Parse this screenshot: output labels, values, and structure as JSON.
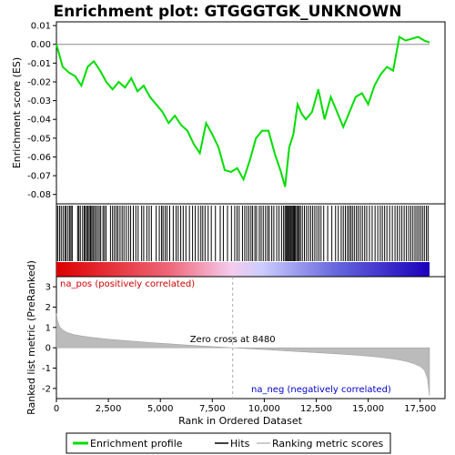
{
  "chart_data": {
    "type": "line",
    "title": "Enrichment plot: GTGGGTGK_UNKNOWN",
    "top_panel": {
      "ylabel": "Enrichment score (ES)",
      "ylim": [
        -0.085,
        0.012
      ],
      "yticks": [
        "0.01",
        "0.00",
        "-0.01",
        "-0.02",
        "-0.03",
        "-0.04",
        "-0.05",
        "-0.06",
        "-0.07",
        "-0.08"
      ],
      "ytick_values": [
        0.01,
        0.0,
        -0.01,
        -0.02,
        -0.03,
        -0.04,
        -0.05,
        -0.06,
        -0.07,
        -0.08
      ],
      "series_name": "Enrichment profile",
      "color": "#00dd00",
      "x": [
        0,
        300,
        600,
        900,
        1200,
        1500,
        1800,
        2100,
        2400,
        2700,
        3000,
        3300,
        3600,
        3900,
        4200,
        4500,
        4800,
        5100,
        5400,
        5700,
        6000,
        6300,
        6600,
        6900,
        7200,
        7500,
        7800,
        8100,
        8400,
        8700,
        9000,
        9300,
        9600,
        9900,
        10200,
        10500,
        10800,
        11000,
        11200,
        11400,
        11600,
        11800,
        12000,
        12300,
        12600,
        12900,
        13200,
        13500,
        13800,
        14100,
        14400,
        14700,
        15000,
        15300,
        15600,
        15900,
        16200,
        16500,
        16800,
        17100,
        17400,
        17700,
        17950
      ],
      "y": [
        0.0,
        -0.012,
        -0.015,
        -0.017,
        -0.022,
        -0.012,
        -0.009,
        -0.014,
        -0.02,
        -0.024,
        -0.02,
        -0.023,
        -0.018,
        -0.025,
        -0.022,
        -0.028,
        -0.032,
        -0.036,
        -0.042,
        -0.038,
        -0.043,
        -0.046,
        -0.053,
        -0.058,
        -0.042,
        -0.048,
        -0.055,
        -0.067,
        -0.068,
        -0.066,
        -0.072,
        -0.062,
        -0.05,
        -0.046,
        -0.046,
        -0.058,
        -0.068,
        -0.076,
        -0.055,
        -0.048,
        -0.032,
        -0.037,
        -0.04,
        -0.036,
        -0.024,
        -0.04,
        -0.028,
        -0.036,
        -0.044,
        -0.036,
        -0.028,
        -0.026,
        -0.032,
        -0.022,
        -0.016,
        -0.012,
        -0.014,
        0.004,
        0.002,
        0.003,
        0.004,
        0.002,
        0.001
      ]
    },
    "hits_panel": {
      "series_name": "Hits",
      "hit_positions": [
        60,
        150,
        230,
        320,
        410,
        470,
        560,
        640,
        700,
        760,
        1020,
        1080,
        1150,
        1260,
        1340,
        1390,
        1460,
        1520,
        1580,
        1640,
        1700,
        1760,
        1830,
        1900,
        1980,
        2060,
        2130,
        2240,
        2310,
        2390,
        2600,
        2700,
        2790,
        2880,
        2960,
        3060,
        3160,
        3250,
        3360,
        3470,
        3570,
        3700,
        3820,
        3930,
        4100,
        4200,
        4350,
        4460,
        4570,
        4800,
        4950,
        5060,
        5130,
        5230,
        5320,
        5450,
        5620,
        5760,
        5860,
        5980,
        6100,
        6230,
        6400,
        6550,
        6680,
        6830,
        6950,
        7040,
        7150,
        7300,
        7450,
        7650,
        7880,
        8030,
        8230,
        8420,
        8580,
        8690,
        8790,
        8950,
        9060,
        9160,
        9260,
        9360,
        9440,
        9550,
        9630,
        9760,
        9850,
        9950,
        10060,
        10160,
        10240,
        10360,
        10460,
        10600,
        10710,
        10830,
        10930,
        11000,
        11060,
        11110,
        11150,
        11200,
        11250,
        11300,
        11350,
        11400,
        11450,
        11500,
        11560,
        11620,
        11680,
        11740,
        11830,
        11930,
        12030,
        12130,
        12230,
        12330,
        12430,
        12530,
        12630,
        12730,
        12860,
        13050,
        13250,
        13430,
        13560,
        13700,
        13800,
        13900,
        14000,
        14080,
        14160,
        14240,
        14330,
        14430,
        14520,
        14620,
        14720,
        14830,
        14930,
        15060,
        15190,
        15330,
        15460,
        15580,
        15680,
        15790,
        15900,
        16030,
        16160,
        16290,
        16400,
        16510,
        16620,
        16730,
        16840,
        16950,
        17050,
        17150,
        17250,
        17340,
        17430,
        17520,
        17610,
        17700,
        17800,
        17880
      ],
      "gradient_labels": [
        "na_pos (positively correlated)",
        "na_neg (negatively correlated)"
      ]
    },
    "bottom_panel": {
      "ylabel": "Ranked list metric (PreRanked)",
      "xlabel": "Rank in Ordered Dataset",
      "ylim": [
        -2.5,
        3.5
      ],
      "yticks": [
        "3",
        "2",
        "1",
        "0",
        "-1",
        "-2"
      ],
      "ytick_values": [
        3,
        2,
        1,
        0,
        -1,
        -2
      ],
      "xlim": [
        0,
        17950
      ],
      "xticks": [
        "0",
        "2,500",
        "5,000",
        "7,500",
        "10,000",
        "12,500",
        "15,000",
        "17,500"
      ],
      "xtick_values": [
        0,
        2500,
        5000,
        7500,
        10000,
        12500,
        15000,
        17500
      ],
      "series_name": "Ranking metric scores",
      "metric_x": [
        0,
        50,
        150,
        300,
        500,
        800,
        1200,
        1800,
        2500,
        3500,
        4500,
        5500,
        6500,
        7500,
        8480,
        9500,
        10500,
        11500,
        12500,
        13500,
        14500,
        15500,
        16300,
        16800,
        17200,
        17500,
        17700,
        17850,
        17950
      ],
      "metric_y": [
        1.7,
        1.35,
        1.05,
        0.88,
        0.76,
        0.66,
        0.58,
        0.5,
        0.42,
        0.34,
        0.26,
        0.19,
        0.12,
        0.06,
        0.0,
        -0.06,
        -0.12,
        -0.18,
        -0.24,
        -0.3,
        -0.37,
        -0.46,
        -0.56,
        -0.66,
        -0.78,
        -0.92,
        -1.1,
        -1.5,
        -2.35
      ],
      "zero_cross_label": "Zero cross at 8480",
      "zero_cross": 8480
    },
    "legend": [
      "Enrichment profile",
      "Hits",
      "Ranking metric scores"
    ]
  }
}
